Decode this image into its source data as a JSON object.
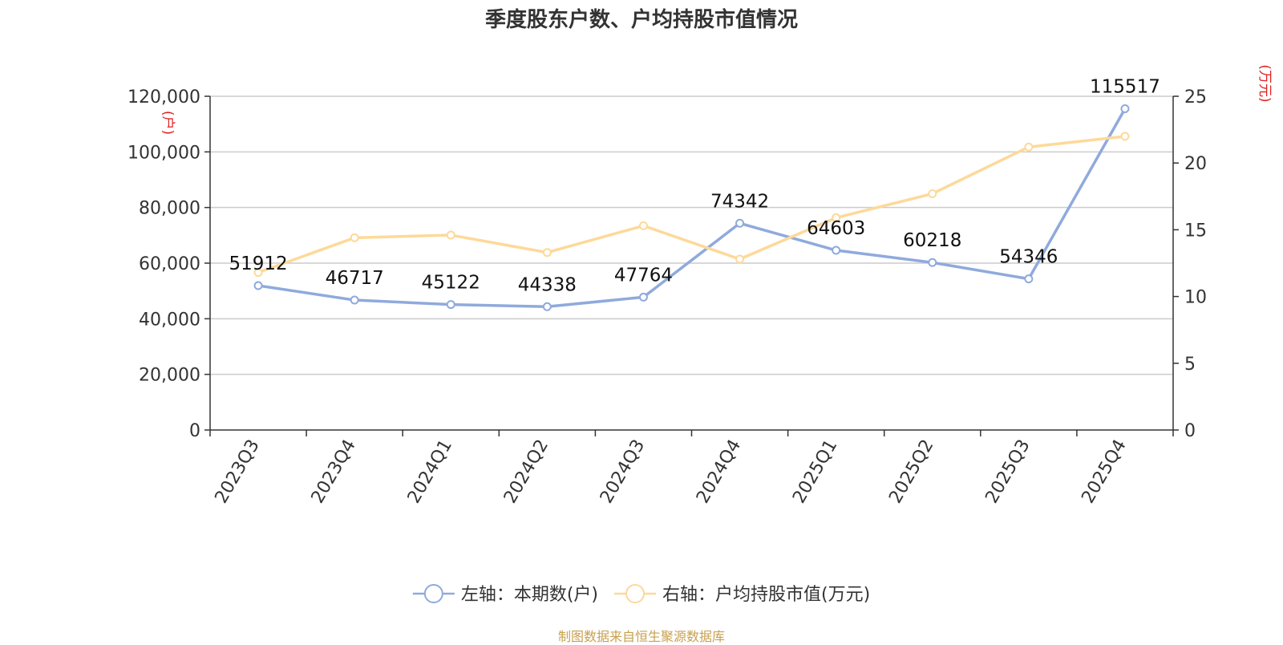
{
  "chart_data": {
    "type": "line",
    "title": "季度股东户数、户均持股市值情况",
    "source": "制图数据来自恒生聚源数据库",
    "categories": [
      "2023Q3",
      "2023Q4",
      "2024Q1",
      "2024Q2",
      "2024Q3",
      "2024Q4",
      "2025Q1",
      "2025Q2",
      "2025Q3",
      "2025Q4"
    ],
    "left_axis": {
      "unit_label": "(户)",
      "ylim": [
        0,
        120000
      ],
      "ticks": [
        0,
        20000,
        40000,
        60000,
        80000,
        100000,
        120000
      ],
      "tick_labels": [
        "0",
        "20,000",
        "40,000",
        "60,000",
        "80,000",
        "100,000",
        "120,000"
      ]
    },
    "right_axis": {
      "unit_label": "(万元)",
      "ylim": [
        0,
        25
      ],
      "ticks": [
        0,
        5,
        10,
        15,
        20,
        25
      ],
      "tick_labels": [
        "0",
        "5",
        "10",
        "15",
        "20",
        "25"
      ]
    },
    "series": [
      {
        "name": "左轴：本期数(户)",
        "axis": "left",
        "color": "#8faadc",
        "values": [
          51912,
          46717,
          45122,
          44338,
          47764,
          74342,
          64603,
          60218,
          54346,
          115517
        ],
        "value_labels": [
          "51912",
          "46717",
          "45122",
          "44338",
          "47764",
          "74342",
          "64603",
          "60218",
          "54346",
          "115517"
        ]
      },
      {
        "name": "右轴：户均持股市值(万元)",
        "axis": "right",
        "color": "#fdd999",
        "values": [
          11.8,
          14.4,
          14.6,
          13.3,
          15.3,
          12.8,
          15.9,
          17.7,
          21.2,
          22.0
        ]
      }
    ],
    "grid": true,
    "legend_position": "bottom",
    "axis_label_color": "#e02020"
  }
}
